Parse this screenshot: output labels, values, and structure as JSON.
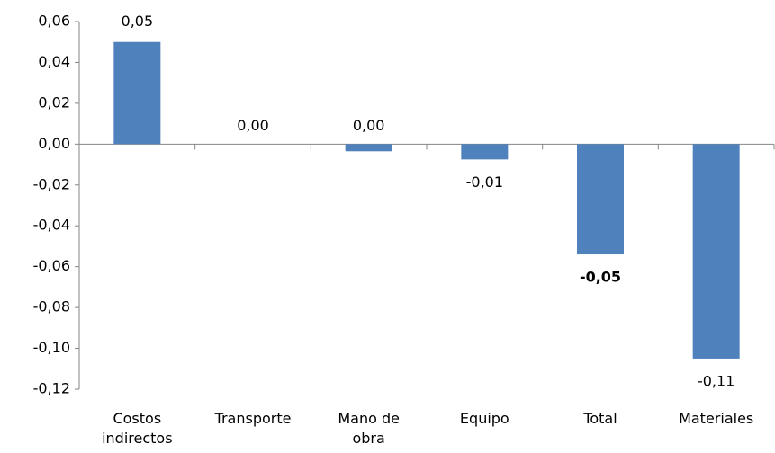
{
  "chart_data": {
    "type": "bar",
    "categories": [
      "Costos indirectos",
      "Transporte",
      "Mano de obra",
      "Equipo",
      "Total",
      "Materiales"
    ],
    "values": [
      0.05,
      0,
      -0.0035,
      -0.0075,
      -0.054,
      -0.105
    ],
    "value_labels": [
      "0,05",
      "0,00",
      "0,00",
      "-0,01",
      "-0,05",
      "-0,11"
    ],
    "value_label_weights": [
      "normal",
      "normal",
      "normal",
      "normal",
      "bold",
      "normal"
    ],
    "color": "#4f81bd",
    "ylim": [
      -0.12,
      0.06
    ],
    "yticks": [
      {
        "value": -0.12,
        "label": "-0,12"
      },
      {
        "value": -0.1,
        "label": "-0,10"
      },
      {
        "value": -0.08,
        "label": "-0,08"
      },
      {
        "value": -0.06,
        "label": "-0,06"
      },
      {
        "value": -0.04,
        "label": "-0,04"
      },
      {
        "value": -0.02,
        "label": "-0,02"
      },
      {
        "value": 0,
        "label": "0,00"
      },
      {
        "value": 0.02,
        "label": "0,02"
      },
      {
        "value": 0.04,
        "label": "0,04"
      },
      {
        "value": 0.06,
        "label": "0,06"
      }
    ],
    "grid": false
  }
}
